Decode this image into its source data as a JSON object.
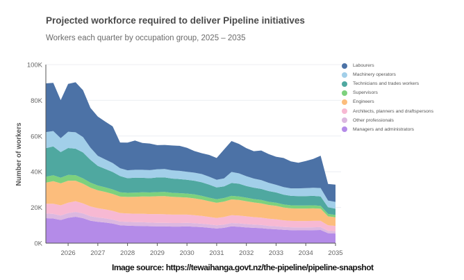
{
  "chart_data": {
    "type": "area",
    "stacked": true,
    "title": "Projected workforce required to deliver Pipeline initiatives",
    "subtitle": "Workers each quarter by occupation group, 2025 – 2035",
    "xlabel": "",
    "ylabel": "Number of workers",
    "ylim": [
      0,
      100000
    ],
    "xlim": [
      2025.25,
      2035.0
    ],
    "grid": true,
    "legend_position": "right",
    "y_ticks": [
      0,
      20000,
      40000,
      60000,
      80000,
      100000
    ],
    "y_tick_labels": [
      "0K",
      "20K",
      "40K",
      "60K",
      "80K",
      "100K"
    ],
    "x_ticks": [
      2026,
      2027,
      2028,
      2029,
      2030,
      2031,
      2032,
      2033,
      2034,
      2035
    ],
    "x_tick_labels": [
      "2026",
      "2027",
      "2028",
      "2029",
      "2030",
      "2031",
      "2032",
      "2033",
      "2034",
      "2035"
    ],
    "x": [
      2025.25,
      2025.5,
      2025.75,
      2026.0,
      2026.25,
      2026.5,
      2026.75,
      2027.0,
      2027.25,
      2027.5,
      2027.75,
      2028.0,
      2028.25,
      2028.5,
      2028.75,
      2029.0,
      2029.25,
      2029.5,
      2029.75,
      2030.0,
      2030.25,
      2030.5,
      2030.75,
      2031.0,
      2031.25,
      2031.5,
      2031.75,
      2032.0,
      2032.25,
      2032.5,
      2032.75,
      2033.0,
      2033.25,
      2033.5,
      2033.75,
      2034.0,
      2034.25,
      2034.5,
      2034.75,
      2035.0
    ],
    "series": [
      {
        "name": "Managers and administrators",
        "color": "#b48be8",
        "values": [
          14000,
          13800,
          13000,
          14200,
          14800,
          14000,
          12600,
          12000,
          11600,
          11000,
          10000,
          9800,
          9700,
          9600,
          9500,
          9400,
          9400,
          9300,
          9300,
          9400,
          9200,
          9000,
          8600,
          8200,
          8600,
          9400,
          9200,
          8800,
          8600,
          8400,
          8000,
          7800,
          7500,
          7300,
          7200,
          7200,
          7300,
          7400,
          5600,
          5400
        ]
      },
      {
        "name": "Other professionals",
        "color": "#dcb8e0",
        "values": [
          2600,
          2600,
          2500,
          2600,
          2700,
          2600,
          2500,
          2400,
          2300,
          2200,
          2100,
          2100,
          2100,
          2100,
          2000,
          2000,
          2000,
          2000,
          2000,
          2000,
          2000,
          1900,
          1900,
          1800,
          1800,
          1900,
          1900,
          1900,
          1800,
          1800,
          1700,
          1700,
          1600,
          1600,
          1600,
          1600,
          1600,
          1600,
          1300,
          1300
        ]
      },
      {
        "name": "Architects, planners and draftspersons",
        "color": "#f7b9d3",
        "values": [
          5500,
          5700,
          5700,
          5900,
          6000,
          5700,
          5500,
          5200,
          5000,
          4900,
          4800,
          4700,
          4700,
          4800,
          4800,
          4900,
          4800,
          4700,
          4700,
          4600,
          4500,
          4400,
          4200,
          4100,
          4300,
          4400,
          4400,
          4300,
          4200,
          4100,
          4000,
          3900,
          3700,
          3600,
          3600,
          3600,
          3600,
          3500,
          3100,
          3000
        ]
      },
      {
        "name": "Engineers",
        "color": "#fcbd7c",
        "values": [
          11800,
          12600,
          12300,
          12300,
          11500,
          11000,
          10500,
          10000,
          9800,
          9500,
          9200,
          9300,
          9500,
          9700,
          9800,
          10000,
          10200,
          10000,
          9800,
          9600,
          9400,
          9100,
          8800,
          8500,
          8600,
          8800,
          8700,
          8500,
          8200,
          8000,
          7700,
          7500,
          7200,
          7000,
          7000,
          7000,
          7000,
          6800,
          5000,
          4800
        ]
      },
      {
        "name": "Supervisors",
        "color": "#7dd17d",
        "values": [
          3300,
          3300,
          3200,
          3200,
          3100,
          3000,
          2800,
          2700,
          2600,
          2500,
          2400,
          2300,
          2300,
          2300,
          2300,
          2300,
          2300,
          2200,
          2200,
          2200,
          2200,
          2100,
          2000,
          2000,
          2000,
          2000,
          2000,
          2000,
          1900,
          1900,
          1800,
          1800,
          1700,
          1700,
          1700,
          1700,
          1700,
          1600,
          1400,
          1300
        ]
      },
      {
        "name": "Technicians and trades workers",
        "color": "#4fa8a0",
        "values": [
          16000,
          16200,
          14300,
          15100,
          14800,
          14500,
          12800,
          11000,
          10300,
          9800,
          9100,
          8200,
          8400,
          8100,
          8000,
          8200,
          8100,
          8000,
          7900,
          7700,
          7700,
          7600,
          7300,
          6600,
          6500,
          7200,
          7100,
          6500,
          6400,
          6200,
          6000,
          5700,
          5500,
          5300,
          5300,
          5300,
          5300,
          5300,
          3700,
          3500
        ]
      },
      {
        "name": "Machinery operators",
        "color": "#a2cfe9",
        "values": [
          9000,
          8600,
          7800,
          9100,
          9200,
          8600,
          6800,
          5600,
          5300,
          5000,
          4400,
          4400,
          4400,
          4500,
          4500,
          4600,
          4700,
          4600,
          4600,
          4500,
          4500,
          4600,
          4400,
          4300,
          4500,
          6200,
          5800,
          5500,
          5100,
          4900,
          4600,
          4300,
          4200,
          4200,
          4300,
          4400,
          4500,
          4700,
          3800,
          3800
        ]
      },
      {
        "name": "Labourers",
        "color": "#4c72a6",
        "values": [
          27300,
          27000,
          21300,
          26800,
          28000,
          26300,
          22300,
          22000,
          21200,
          20500,
          14400,
          15500,
          16400,
          15000,
          14900,
          13500,
          13500,
          13900,
          14000,
          13400,
          12100,
          11700,
          12200,
          12200,
          16200,
          17300,
          16500,
          15700,
          15300,
          16600,
          16100,
          15700,
          16300,
          15100,
          14300,
          15200,
          16200,
          18100,
          9300,
          9700
        ]
      }
    ]
  },
  "legend": {
    "items": [
      {
        "label": "Labourers",
        "color": "#4c72a6"
      },
      {
        "label": "Machinery operators",
        "color": "#a2cfe9"
      },
      {
        "label": "Technicians and trades workers",
        "color": "#4fa8a0"
      },
      {
        "label": "Supervisors",
        "color": "#7dd17d"
      },
      {
        "label": "Engineers",
        "color": "#fcbd7c"
      },
      {
        "label": "Architects, planners and draftspersons",
        "color": "#f7b9d3"
      },
      {
        "label": "Other professionals",
        "color": "#dcb8e0"
      },
      {
        "label": "Managers and administrators",
        "color": "#b48be8"
      }
    ]
  },
  "source_note": "Image source: https://tewaihanga.govt.nz/the-pipeline/pipeline-snapshot"
}
